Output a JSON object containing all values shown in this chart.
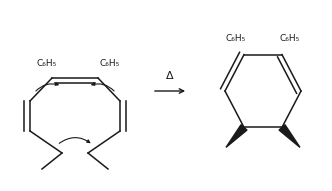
{
  "background_color": "#ffffff",
  "arrow_label": "Δ",
  "left_label_1": "C₆H₅",
  "left_label_2": "C₆H₅",
  "right_label_1": "C₆H₅",
  "right_label_2": "C₆H₅",
  "line_color": "#1a1a1a",
  "font_size": 6.5,
  "arrow_fontsize": 8
}
